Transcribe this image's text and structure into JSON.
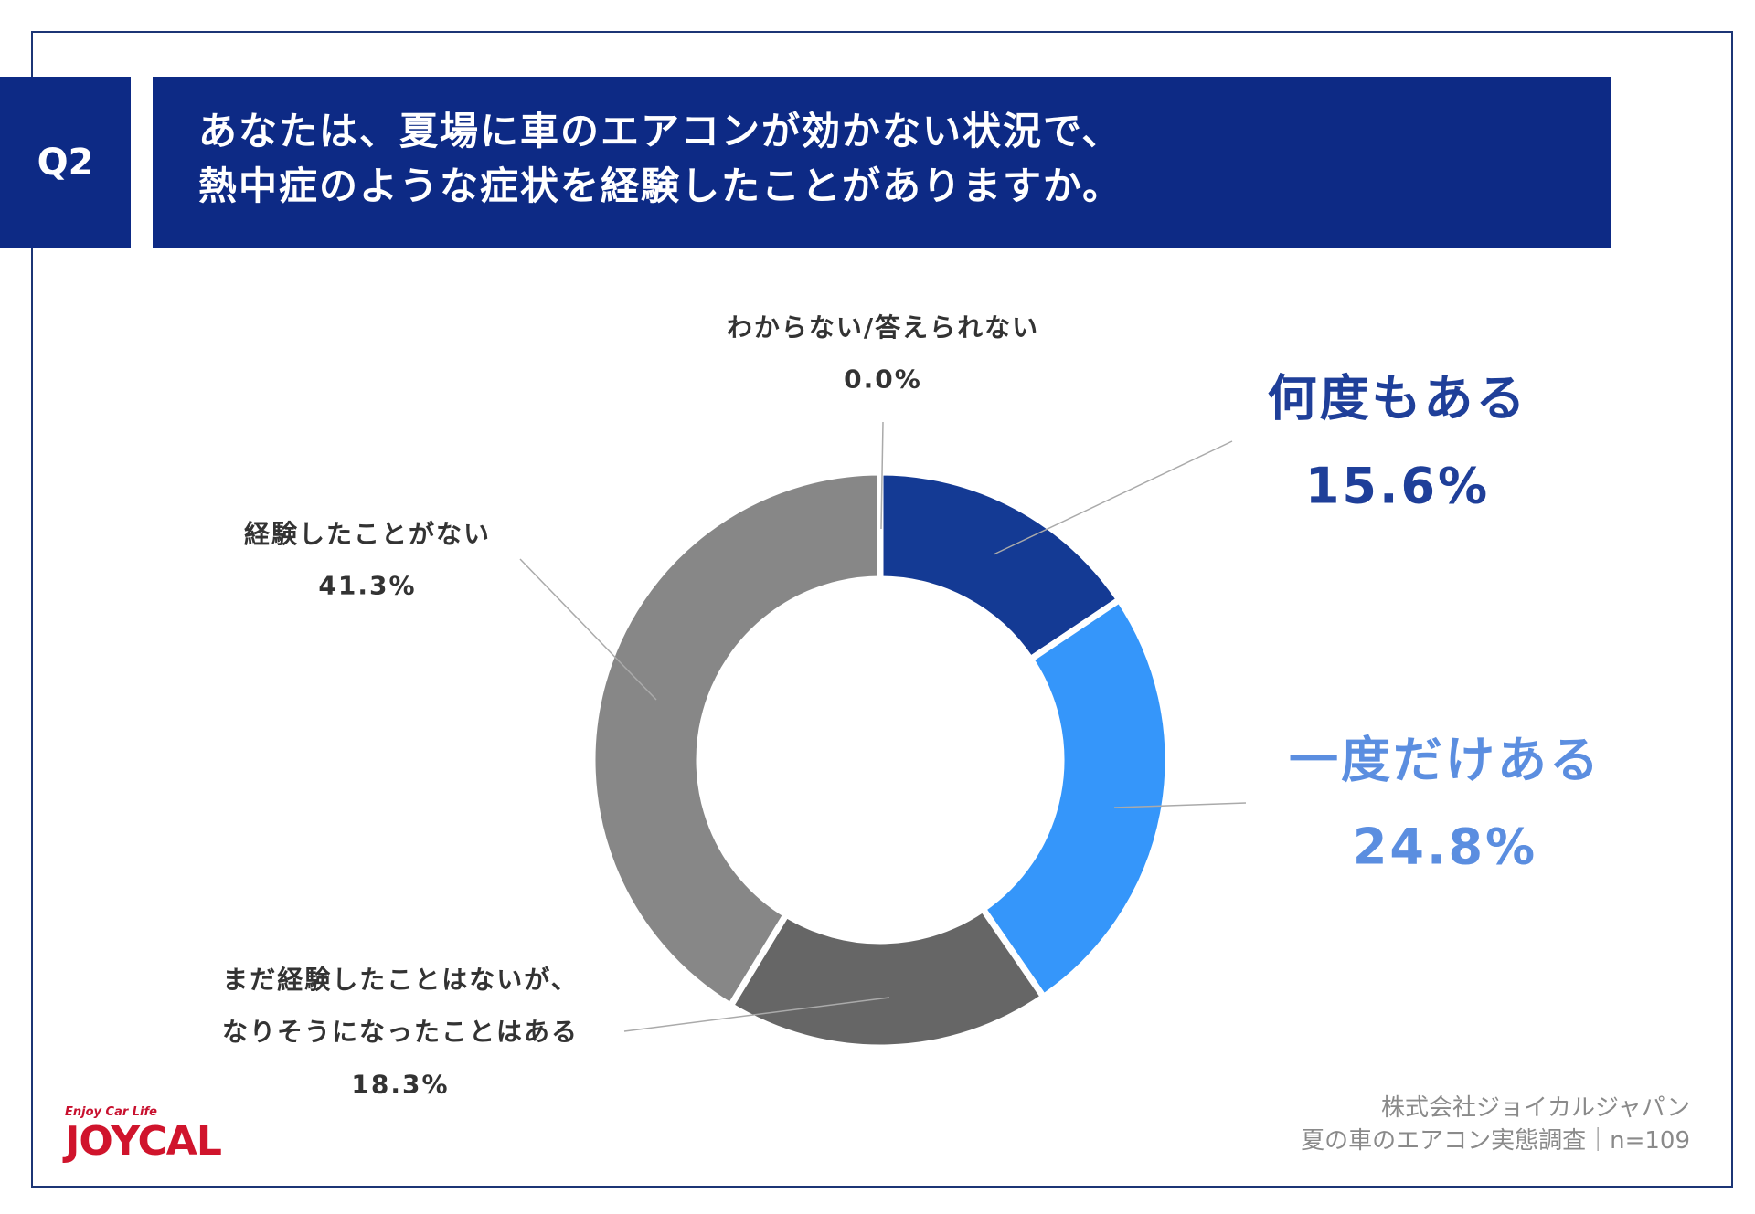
{
  "header": {
    "question_number": "Q2",
    "title_line1": "あなたは、夏場に車のエアコンが効かない状況で、",
    "title_line2": "熱中症のような症状を経験したことがありますか。"
  },
  "chart_data": {
    "type": "pie",
    "donut": true,
    "start": "top",
    "direction": "clockwise",
    "slices": [
      {
        "label": "何度もある",
        "value": 15.6,
        "display": "15.6%",
        "color": "#143a94"
      },
      {
        "label": "一度だけある",
        "value": 24.8,
        "display": "24.8%",
        "color": "#3596fa"
      },
      {
        "label_line1": "まだ経験したことはないが、",
        "label_line2": "なりそうになったことはある",
        "value": 18.3,
        "display": "18.3%",
        "color": "#666666"
      },
      {
        "label": "経験したことがない",
        "value": 41.3,
        "display": "41.3%",
        "color": "#878787"
      },
      {
        "label": "わからない/答えられない",
        "value": 0.0,
        "display": "0.0%",
        "color": "#cccccc"
      }
    ]
  },
  "footer": {
    "company": "株式会社ジョイカルジャパン",
    "survey": "夏の車のエアコン実態調査｜n=109"
  },
  "logo": {
    "tagline": "Enjoy Car Life",
    "brand": "JOYCAL"
  }
}
